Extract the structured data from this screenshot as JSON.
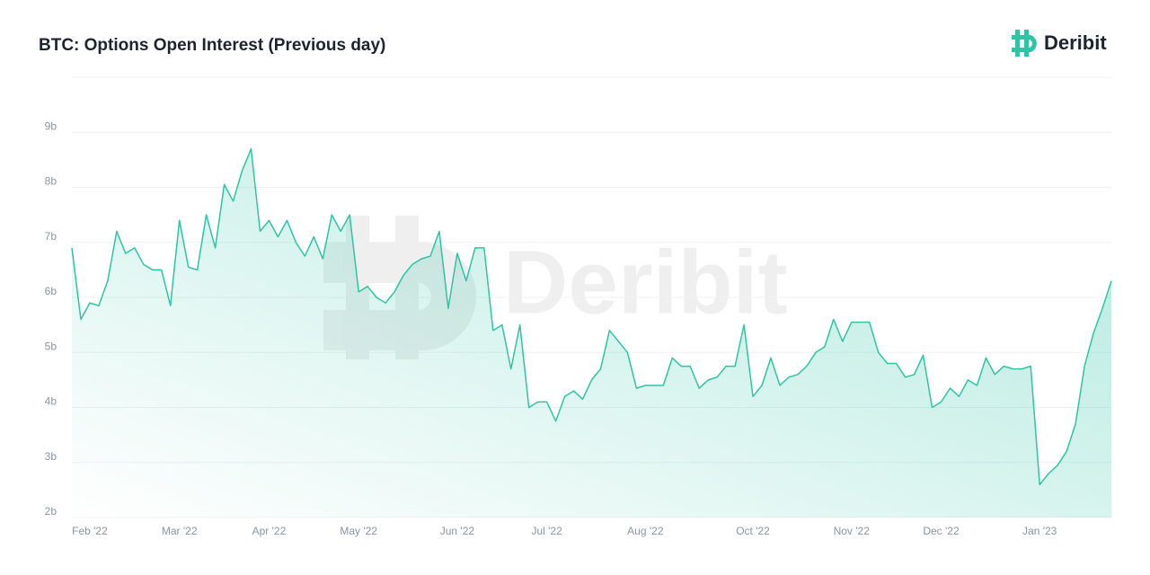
{
  "chart_data": {
    "type": "line",
    "title": "BTC: Options Open Interest (Previous day)",
    "brand": "Deribit",
    "categories": [
      null,
      null,
      "Feb '22",
      null,
      null,
      null,
      null,
      null,
      null,
      null,
      null,
      null,
      "Mar '22",
      null,
      null,
      null,
      null,
      null,
      null,
      null,
      null,
      null,
      "Apr '22",
      null,
      null,
      null,
      null,
      null,
      null,
      null,
      null,
      null,
      "May '22",
      null,
      null,
      null,
      null,
      null,
      null,
      null,
      null,
      null,
      null,
      "Jun '22",
      null,
      null,
      null,
      null,
      null,
      null,
      null,
      null,
      null,
      "Jul '22",
      null,
      null,
      null,
      null,
      null,
      null,
      null,
      null,
      null,
      null,
      "Aug '22",
      null,
      null,
      null,
      null,
      null,
      null,
      null,
      null,
      null,
      null,
      null,
      "Oct '22",
      null,
      null,
      null,
      null,
      null,
      null,
      null,
      null,
      null,
      null,
      "Nov '22",
      null,
      null,
      null,
      null,
      null,
      null,
      null,
      null,
      null,
      "Dec '22",
      null,
      null,
      null,
      null,
      null,
      null,
      null,
      null,
      null,
      null,
      "Jan '23",
      null,
      null,
      null,
      null,
      null,
      null,
      null,
      null
    ],
    "series": [
      {
        "color": "#2ec4a6",
        "values": [
          6.9,
          5.6,
          5.9,
          5.85,
          6.3,
          7.2,
          6.8,
          6.9,
          6.6,
          6.5,
          6.5,
          5.85,
          7.4,
          6.55,
          6.5,
          7.5,
          6.9,
          8.05,
          7.75,
          8.3,
          8.7,
          7.2,
          7.4,
          7.1,
          7.4,
          7.0,
          6.75,
          7.1,
          6.7,
          7.5,
          7.2,
          7.5,
          6.1,
          6.2,
          6.0,
          5.9,
          6.1,
          6.4,
          6.6,
          6.7,
          6.75,
          7.2,
          5.8,
          6.8,
          6.3,
          6.9,
          6.9,
          5.4,
          5.5,
          4.7,
          5.5,
          4.0,
          4.1,
          4.1,
          3.75,
          4.2,
          4.3,
          4.15,
          4.5,
          4.7,
          5.4,
          5.2,
          5.0,
          4.35,
          4.4,
          4.4,
          4.4,
          4.9,
          4.75,
          4.75,
          4.35,
          4.5,
          4.55,
          4.75,
          4.75,
          5.5,
          4.2,
          4.4,
          4.9,
          4.4,
          4.55,
          4.6,
          4.75,
          5.0,
          5.1,
          5.6,
          5.2,
          5.55,
          5.55,
          5.55,
          5.0,
          4.8,
          4.8,
          4.55,
          4.6,
          4.95,
          4.0,
          4.1,
          4.35,
          4.2,
          4.5,
          4.4,
          4.9,
          4.6,
          4.75,
          4.7,
          4.7,
          4.75,
          2.6,
          2.8,
          2.95,
          3.2,
          3.7,
          4.75,
          5.35,
          5.8,
          6.3
        ]
      }
    ],
    "ylim": [
      2,
      10
    ],
    "yticks": [
      {
        "value": 2,
        "label": "2b"
      },
      {
        "value": 3,
        "label": "3b"
      },
      {
        "value": 4,
        "label": "4b"
      },
      {
        "value": 5,
        "label": "5b"
      },
      {
        "value": 6,
        "label": "6b"
      },
      {
        "value": 7,
        "label": "7b"
      },
      {
        "value": 8,
        "label": "8b"
      },
      {
        "value": 9,
        "label": "9b"
      }
    ],
    "grid": true
  }
}
